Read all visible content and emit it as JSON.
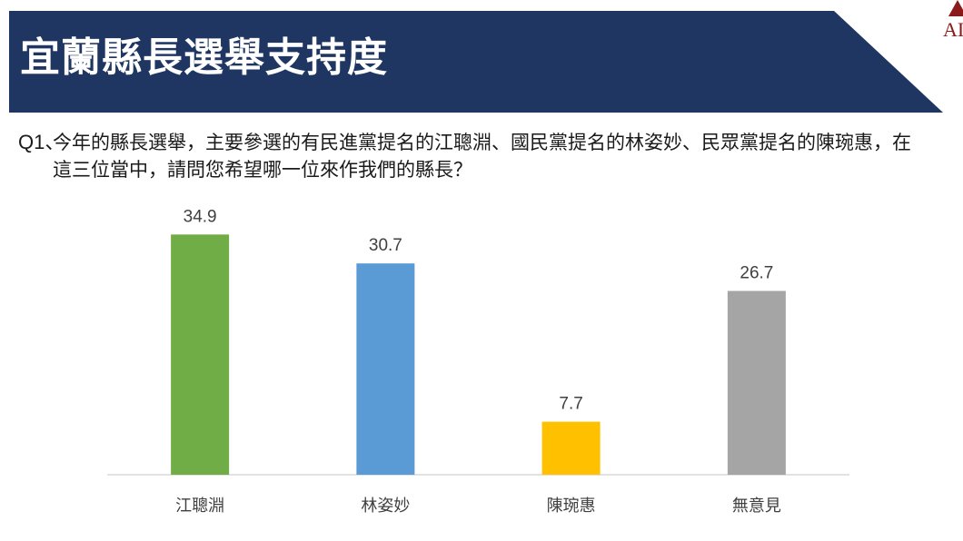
{
  "header": {
    "title": "宜蘭縣長選舉支持度",
    "banner_color": "#1e3661",
    "logo_text": "AI"
  },
  "question": {
    "number": "Q1、",
    "text": "今年的縣長選舉，主要參選的有民進黨提名的江聰淵、國民黨提名的林姿妙、民眾黨提名的陳琬惠，在這三位當中，請問您希望哪一位來作我們的縣長？"
  },
  "chart_data": {
    "type": "bar",
    "categories": [
      "江聰淵",
      "林姿妙",
      "陳琬惠",
      "無意見"
    ],
    "values": [
      34.9,
      30.7,
      7.7,
      26.7
    ],
    "value_labels": [
      "34.9",
      "30.7",
      "7.7",
      "26.7"
    ],
    "colors": [
      "#70ad47",
      "#5b9bd5",
      "#ffc000",
      "#a5a5a5"
    ],
    "title": "",
    "xlabel": "",
    "ylabel": "",
    "ylim": [
      0,
      36
    ],
    "grid": false,
    "legend": "none"
  }
}
